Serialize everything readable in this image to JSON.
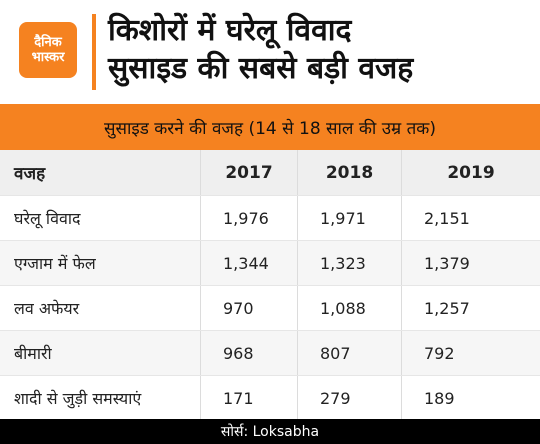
{
  "brand": {
    "logo_line1": "दैनिक",
    "logo_line2": "भास्कर",
    "accent": "#f58220"
  },
  "title_lines": [
    "किशोरों में घरेलू विवाद",
    "सुसाइड की सबसे बड़ी वजह"
  ],
  "subtitle": "सुसाइड करने की वजह (14 से 18 साल की उम्र तक)",
  "source": "सोर्स: Loksabha",
  "chart_data": {
    "type": "table",
    "columns": [
      "वजह",
      "2017",
      "2018",
      "2019"
    ],
    "rows": [
      [
        "घरेलू विवाद",
        "1,976",
        "1,971",
        "2,151"
      ],
      [
        "एग्जाम में फेल",
        "1,344",
        "1,323",
        "1,379"
      ],
      [
        "लव अफेयर",
        "970",
        "1,088",
        "1,257"
      ],
      [
        "बीमारी",
        "968",
        "807",
        "792"
      ],
      [
        "शादी से जुड़ी समस्याएं",
        "171",
        "279",
        "189"
      ]
    ],
    "title": "सुसाइड करने की वजह (14 से 18 साल की उम्र तक)"
  }
}
